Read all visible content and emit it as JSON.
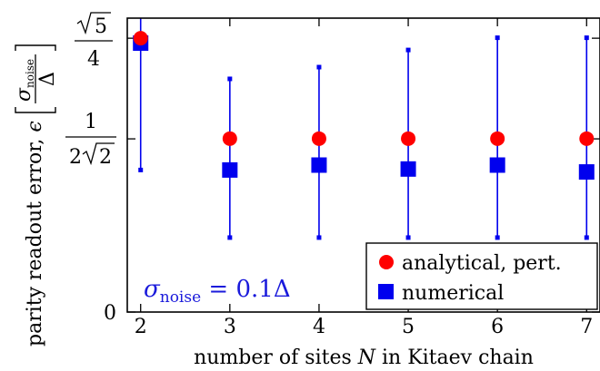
{
  "chart_data": {
    "type": "scatter",
    "xlabel_prefix": "number of sites ",
    "xlabel_var": "N",
    "xlabel_suffix": " in Kitaev chain",
    "ylabel_text": "parity readout error, ",
    "ylabel_var": "ϵ",
    "ylabel_unit_num": "σ",
    "ylabel_unit_num_sub": "noise",
    "ylabel_unit_den": "Δ",
    "x_ticks": [
      "2",
      "3",
      "4",
      "5",
      "6",
      "7"
    ],
    "x_tick_values": [
      2,
      3,
      4,
      5,
      6,
      7
    ],
    "y_ticks": [
      {
        "value": 0,
        "label": "0"
      },
      {
        "value": 0.353553,
        "label_num": "1",
        "label_den_prefix": "2",
        "label_den_root": "2"
      },
      {
        "value": 0.559017,
        "label_num_root": "5",
        "label_den": "4"
      }
    ],
    "xlim": [
      1.85,
      7.15
    ],
    "ylim": [
      0,
      0.6
    ],
    "series": [
      {
        "name": "analytical, pert.",
        "color": "#ff0000",
        "marker": "circle",
        "x": [
          2,
          3,
          4,
          5,
          6,
          7
        ],
        "y": [
          0.559,
          0.354,
          0.354,
          0.354,
          0.354,
          0.354
        ]
      },
      {
        "name": "numerical",
        "color": "#0000ee",
        "marker": "square",
        "x": [
          2,
          3,
          4,
          5,
          6,
          7
        ],
        "y": [
          0.549,
          0.29,
          0.3,
          0.292,
          0.3,
          0.286
        ],
        "err_low": [
          0.29,
          0.152,
          0.152,
          0.152,
          0.152,
          0.152
        ],
        "err_high": [
          0.65,
          0.476,
          0.5,
          0.535,
          0.56,
          0.56
        ]
      }
    ],
    "annotation_sym": "σ",
    "annotation_sub": "noise",
    "annotation_rest": " = 0.1Δ",
    "legend_position": "bottom-right",
    "grid": false
  }
}
